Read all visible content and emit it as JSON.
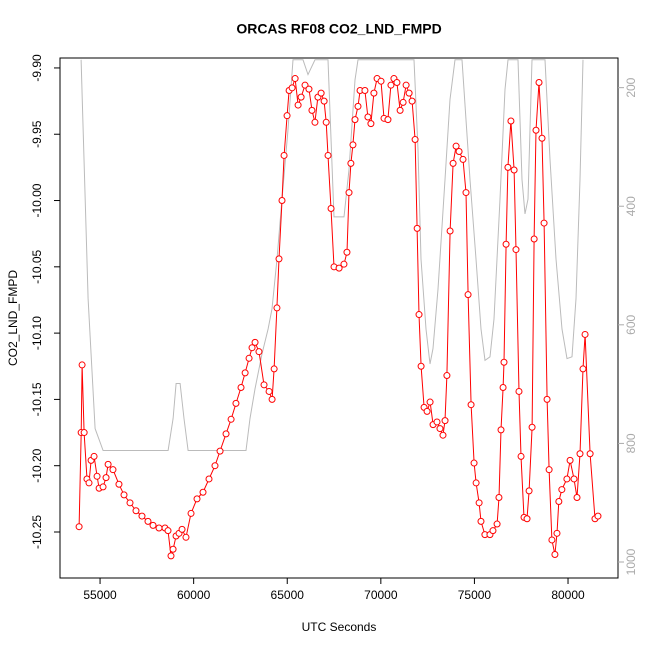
{
  "chart_data": {
    "type": "line",
    "title": "ORCAS RF08 CO2_LND_FMPD",
    "xlabel": "UTC Seconds",
    "ylabel": "CO2_LND_FMPD",
    "xlim": [
      52860,
      82670
    ],
    "xticks": [
      55000,
      60000,
      65000,
      70000,
      75000,
      80000
    ],
    "ylim": [
      -10.2847,
      -9.8925
    ],
    "yticks": [
      {
        "value": -9.9,
        "label": "-9.90"
      },
      {
        "value": -9.95,
        "label": "-9.95"
      },
      {
        "value": -10,
        "label": "-10.00"
      },
      {
        "value": -10.05,
        "label": "-10.05"
      },
      {
        "value": -10.1,
        "label": "-10.10"
      },
      {
        "value": -10.15,
        "label": "-10.15"
      },
      {
        "value": -10.2,
        "label": "-10.20"
      },
      {
        "value": -10.25,
        "label": "-10.25"
      }
    ],
    "y2lim": [
      150,
      1027
    ],
    "y2ticks": [
      200,
      400,
      600,
      800,
      1000
    ],
    "series": [
      {
        "color": "#ff0000",
        "marker": "circle",
        "x": [
          53880,
          53990,
          54040,
          54150,
          54300,
          54410,
          54520,
          54680,
          54840,
          54950,
          55160,
          55320,
          55430,
          55690,
          56010,
          56280,
          56600,
          56920,
          57240,
          57560,
          57830,
          58150,
          58470,
          58630,
          58790,
          58900,
          59060,
          59220,
          59380,
          59590,
          59860,
          60180,
          60500,
          60820,
          61140,
          61410,
          61730,
          62000,
          62260,
          62530,
          62750,
          62960,
          63120,
          63280,
          63490,
          63760,
          64030,
          64190,
          64300,
          64450,
          64560,
          64720,
          64830,
          64990,
          65100,
          65260,
          65420,
          65580,
          65740,
          65950,
          66160,
          66320,
          66480,
          66640,
          66810,
          66970,
          67080,
          67180,
          67340,
          67500,
          67770,
          68030,
          68190,
          68300,
          68400,
          68510,
          68620,
          68780,
          68890,
          69150,
          69310,
          69470,
          69630,
          69800,
          70010,
          70170,
          70380,
          70540,
          70700,
          70860,
          71030,
          71190,
          71350,
          71510,
          71670,
          71830,
          71940,
          72040,
          72150,
          72310,
          72470,
          72630,
          72790,
          73000,
          73160,
          73320,
          73430,
          73530,
          73700,
          73860,
          74020,
          74180,
          74390,
          74550,
          74660,
          74820,
          74980,
          75090,
          75250,
          75350,
          75560,
          75830,
          75990,
          76210,
          76310,
          76420,
          76530,
          76580,
          76690,
          76790,
          76950,
          77120,
          77220,
          77380,
          77490,
          77650,
          77810,
          77920,
          78080,
          78190,
          78290,
          78450,
          78610,
          78720,
          78880,
          78990,
          79140,
          79300,
          79410,
          79510,
          79670,
          79940,
          80110,
          80320,
          80480,
          80640,
          80800,
          80910,
          81180,
          81440,
          81600
        ],
        "values": [
          -10.246,
          -10.175,
          -10.124,
          -10.175,
          -10.21,
          -10.213,
          -10.196,
          -10.193,
          -10.208,
          -10.217,
          -10.216,
          -10.209,
          -10.199,
          -10.203,
          -10.214,
          -10.222,
          -10.228,
          -10.234,
          -10.238,
          -10.242,
          -10.245,
          -10.247,
          -10.247,
          -10.249,
          -10.268,
          -10.263,
          -10.253,
          -10.251,
          -10.248,
          -10.254,
          -10.236,
          -10.225,
          -10.22,
          -10.21,
          -10.2,
          -10.189,
          -10.176,
          -10.165,
          -10.153,
          -10.141,
          -10.13,
          -10.119,
          -10.111,
          -10.107,
          -10.114,
          -10.139,
          -10.144,
          -10.15,
          -10.127,
          -10.081,
          -10.044,
          -10,
          -9.966,
          -9.936,
          -9.917,
          -9.915,
          -9.908,
          -9.928,
          -9.922,
          -9.913,
          -9.916,
          -9.932,
          -9.941,
          -9.922,
          -9.919,
          -9.925,
          -9.941,
          -9.966,
          -10.006,
          -10.05,
          -10.051,
          -10.048,
          -10.039,
          -9.994,
          -9.972,
          -9.958,
          -9.939,
          -9.929,
          -9.917,
          -9.917,
          -9.937,
          -9.942,
          -9.919,
          -9.908,
          -9.91,
          -9.938,
          -9.939,
          -9.913,
          -9.908,
          -9.911,
          -9.932,
          -9.926,
          -9.913,
          -9.919,
          -9.925,
          -9.954,
          -10.021,
          -10.086,
          -10.125,
          -10.156,
          -10.159,
          -10.152,
          -10.169,
          -10.167,
          -10.172,
          -10.177,
          -10.166,
          -10.132,
          -10.023,
          -9.972,
          -9.959,
          -9.963,
          -9.969,
          -9.994,
          -10.071,
          -10.154,
          -10.198,
          -10.213,
          -10.228,
          -10.242,
          -10.252,
          -10.252,
          -10.249,
          -10.244,
          -10.224,
          -10.173,
          -10.141,
          -10.122,
          -10.033,
          -9.975,
          -9.94,
          -9.977,
          -10.037,
          -10.144,
          -10.193,
          -10.239,
          -10.24,
          -10.219,
          -10.171,
          -10.029,
          -9.947,
          -9.911,
          -9.953,
          -10.017,
          -10.15,
          -10.203,
          -10.256,
          -10.267,
          -10.251,
          -10.227,
          -10.218,
          -10.21,
          -10.196,
          -10.21,
          -10.224,
          -10.191,
          -10.127,
          -10.101,
          -10.191,
          -10.24,
          -10.238
        ]
      },
      {
        "color": "#bbbbbb",
        "axis": "y2",
        "x": [
          53985,
          54359,
          54733,
          55160,
          58633,
          58900,
          59060,
          59274,
          59487,
          59701,
          62799,
          63013,
          63280,
          63654,
          63975,
          64188,
          64455,
          64722,
          65043,
          65310,
          65844,
          66111,
          66485,
          67020,
          67180,
          67500,
          68034,
          68301,
          68622,
          68782,
          71774,
          71987,
          72147,
          72414,
          72627,
          72787,
          73056,
          73430,
          73697,
          73964,
          74338,
          74765,
          75086,
          75353,
          75567,
          75834,
          76047,
          76368,
          76635,
          76795,
          77330,
          77543,
          77704,
          77864,
          78077,
          78772,
          79039,
          79360,
          79680,
          79947,
          80214,
          80428,
          80642,
          80802
        ],
        "values": [
          153,
          556,
          775,
          812,
          812,
          758,
          699,
          699,
          758,
          812,
          812,
          758,
          708,
          649,
          607,
          573,
          489,
          388,
          271,
          153,
          153,
          178,
          153,
          153,
          153,
          418,
          418,
          338,
          187,
          153,
          153,
          304,
          489,
          607,
          666,
          640,
          540,
          355,
          220,
          153,
          153,
          355,
          489,
          607,
          660,
          654,
          590,
          388,
          203,
          153,
          153,
          355,
          413,
          388,
          153,
          153,
          321,
          489,
          607,
          657,
          654,
          556,
          355,
          153
        ]
      }
    ]
  }
}
